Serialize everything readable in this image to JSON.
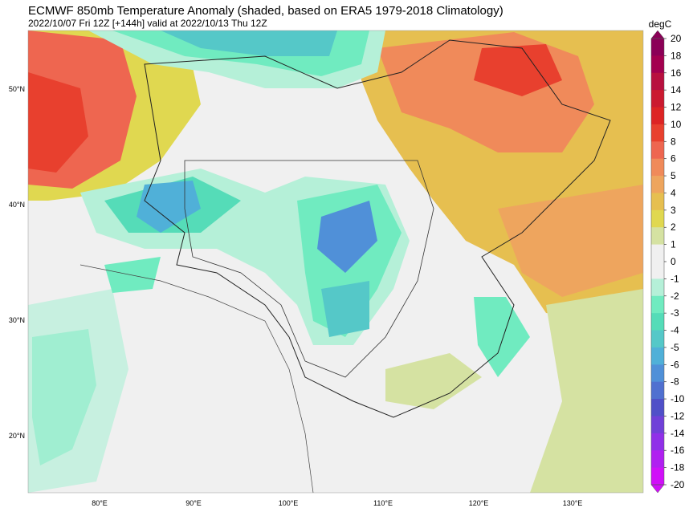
{
  "header": {
    "title": "ECMWF 850mb Temperature Anomaly (shaded, based on ERA5 1979-2018 Climatology)",
    "subtitle": "2022/10/07 Fri 12Z [+144h] valid at 2022/10/13 Thu 12Z"
  },
  "map": {
    "lat_labels": [
      "50°N",
      "40°N",
      "30°N",
      "20°N"
    ],
    "lon_labels": [
      "80°E",
      "90°E",
      "100°E",
      "110°E",
      "120°E",
      "130°E"
    ]
  },
  "colorbar": {
    "unit": "degC",
    "labels": [
      20,
      18,
      16,
      14,
      12,
      10,
      8,
      6,
      5,
      4,
      3,
      2,
      1,
      0,
      -1,
      -2,
      -3,
      -4,
      -5,
      -6,
      -8,
      -10,
      -12,
      -14,
      -16,
      -18,
      -20
    ],
    "colors": [
      "#8b0057",
      "#a3004f",
      "#b8103f",
      "#cb1a30",
      "#dd2424",
      "#e8402e",
      "#ee6650",
      "#f08a5a",
      "#eea55e",
      "#e6bf50",
      "#e0d850",
      "#d5e2a2",
      "#f0f0f0",
      "#f0f0f0",
      "#b5f0d8",
      "#70ebc0",
      "#55dcb8",
      "#55c8c8",
      "#50b0d8",
      "#5090d8",
      "#5070d0",
      "#5050c8",
      "#7040d8",
      "#9030e8",
      "#b020f0",
      "#d010f8"
    ]
  }
}
